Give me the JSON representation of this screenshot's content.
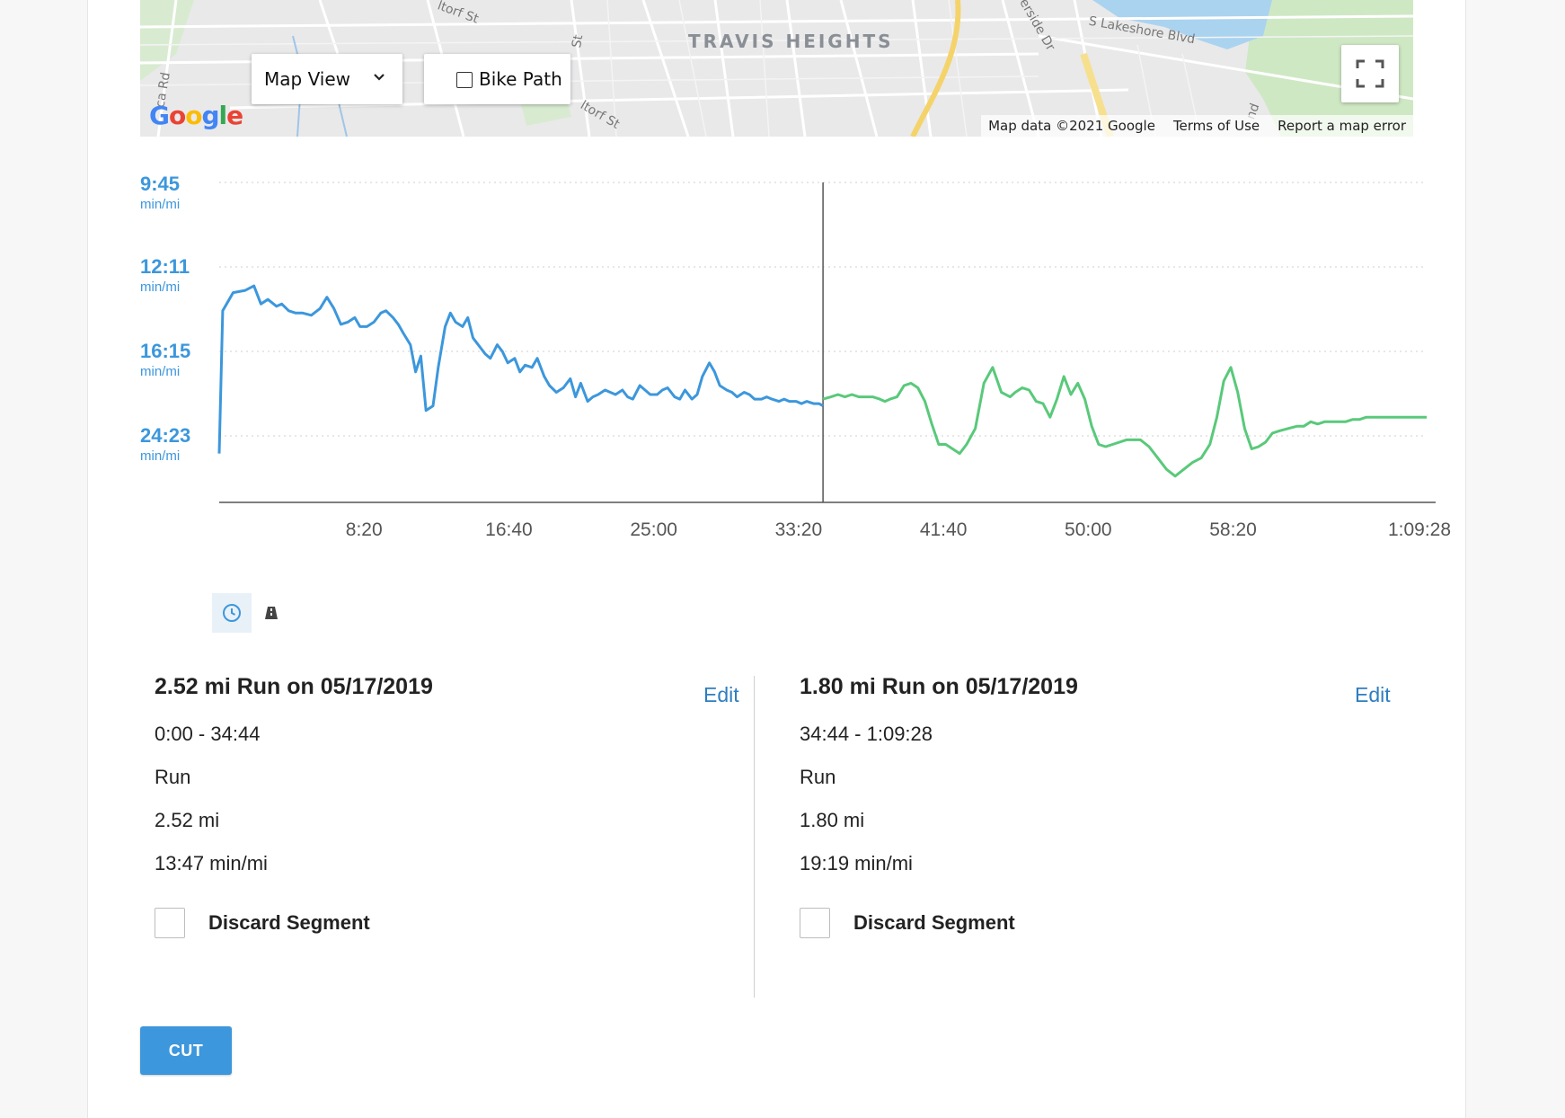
{
  "map": {
    "neighborhood_label": "TRAVIS HEIGHTS",
    "street_labels": [
      "Lakeshore Blvd",
      "Riverside Dr",
      "Altorf St",
      "St",
      "Ca Rd",
      "Altorf St",
      "nd"
    ],
    "street_labels_full": [
      "S Lakeshore Blvd",
      "verside Dr",
      "ltorf St",
      "St",
      "ca Rd",
      "ltorf St",
      "nd"
    ],
    "map_type_selected": "Map View",
    "bike_path_label": "Bike Path",
    "logo_text": "Google",
    "footer": {
      "data": "Map data ©2021 Google",
      "terms": "Terms of Use",
      "report": "Report a map error"
    },
    "icons": {
      "fullscreen": "fullscreen-icon",
      "dropdown": "chevron-down-icon"
    }
  },
  "chart_data": {
    "type": "line",
    "y_ticks": [
      {
        "label": "9:45",
        "unit": "min/mi"
      },
      {
        "label": "12:11",
        "unit": "min/mi"
      },
      {
        "label": "16:15",
        "unit": "min/mi"
      },
      {
        "label": "24:23",
        "unit": "min/mi"
      }
    ],
    "x_ticks": [
      "8:20",
      "16:40",
      "25:00",
      "33:20",
      "41:40",
      "50:00",
      "58:20",
      "1:09:28"
    ],
    "split_time": "34:44",
    "series": [
      {
        "color": "#3c97dc",
        "x": [
          0,
          0.2,
          0.8,
          1.5,
          2.0,
          2.4,
          2.8,
          3.3,
          3.6,
          4.0,
          4.4,
          4.8,
          5.3,
          5.8,
          6.2,
          6.6,
          7.0,
          7.4,
          7.8,
          8.1,
          8.5,
          8.9,
          9.3,
          9.6,
          10.0,
          10.3,
          10.6,
          11.0,
          11.3,
          11.6,
          11.9,
          12.3,
          12.6,
          13.0,
          13.3,
          13.6,
          14.0,
          14.3,
          14.6,
          15.0,
          15.3,
          15.6,
          16.0,
          16.3,
          16.6,
          17.0,
          17.3,
          17.6,
          18.0,
          18.3,
          18.7,
          19.0,
          19.4,
          19.8,
          20.2,
          20.5,
          20.8,
          21.2,
          21.5,
          21.8,
          22.2,
          22.5,
          22.8,
          23.2,
          23.5,
          23.8,
          24.2,
          24.5,
          24.8,
          25.2,
          25.5,
          25.8,
          26.2,
          26.5,
          26.8,
          27.2,
          27.5,
          27.8,
          28.2,
          28.5,
          28.8,
          29.2,
          29.5,
          29.8,
          30.2,
          30.5,
          30.8,
          31.2,
          31.5,
          31.8,
          32.2,
          32.5,
          32.8,
          33.2,
          33.5,
          33.8,
          34.2,
          34.5,
          34.74
        ],
        "y": [
          0.22,
          0.85,
          0.93,
          0.94,
          0.96,
          0.88,
          0.9,
          0.87,
          0.88,
          0.85,
          0.84,
          0.84,
          0.83,
          0.86,
          0.91,
          0.86,
          0.79,
          0.8,
          0.82,
          0.78,
          0.78,
          0.8,
          0.84,
          0.85,
          0.82,
          0.79,
          0.75,
          0.7,
          0.58,
          0.65,
          0.41,
          0.43,
          0.6,
          0.78,
          0.84,
          0.8,
          0.78,
          0.82,
          0.73,
          0.69,
          0.66,
          0.64,
          0.7,
          0.67,
          0.62,
          0.64,
          0.58,
          0.61,
          0.6,
          0.64,
          0.56,
          0.52,
          0.49,
          0.51,
          0.55,
          0.47,
          0.53,
          0.45,
          0.47,
          0.48,
          0.5,
          0.49,
          0.48,
          0.5,
          0.47,
          0.46,
          0.52,
          0.5,
          0.48,
          0.48,
          0.5,
          0.51,
          0.47,
          0.46,
          0.5,
          0.46,
          0.48,
          0.56,
          0.62,
          0.58,
          0.52,
          0.5,
          0.49,
          0.47,
          0.49,
          0.48,
          0.46,
          0.46,
          0.47,
          0.46,
          0.45,
          0.46,
          0.45,
          0.45,
          0.44,
          0.45,
          0.44,
          0.44,
          0.43
        ]
      },
      {
        "color": "#59c97a",
        "x": [
          34.74,
          35.2,
          35.6,
          36.0,
          36.4,
          36.8,
          37.2,
          37.6,
          38.0,
          38.3,
          38.6,
          39.0,
          39.4,
          39.8,
          40.2,
          40.6,
          41.0,
          41.4,
          41.8,
          42.2,
          42.6,
          43.0,
          43.5,
          44.0,
          44.5,
          45.0,
          45.5,
          45.8,
          46.2,
          46.6,
          47.0,
          47.4,
          47.8,
          48.2,
          48.6,
          49.0,
          49.4,
          49.8,
          50.2,
          50.6,
          51.0,
          51.4,
          51.8,
          52.2,
          52.6,
          53.0,
          53.5,
          54.0,
          54.5,
          55.0,
          55.5,
          56.0,
          56.5,
          57.0,
          57.4,
          57.8,
          58.2,
          58.6,
          59.0,
          59.4,
          59.8,
          60.2,
          60.6,
          61.0,
          61.5,
          62.0,
          62.4,
          62.8,
          63.2,
          63.6,
          64.0,
          64.4,
          64.8,
          65.2,
          65.6,
          66.0,
          66.4,
          66.8,
          67.2,
          67.6,
          68.0,
          68.4,
          68.8,
          69.2,
          69.47
        ],
        "y": [
          0.46,
          0.47,
          0.48,
          0.47,
          0.48,
          0.47,
          0.47,
          0.47,
          0.46,
          0.45,
          0.46,
          0.47,
          0.52,
          0.53,
          0.51,
          0.45,
          0.35,
          0.26,
          0.26,
          0.24,
          0.22,
          0.26,
          0.33,
          0.53,
          0.6,
          0.49,
          0.47,
          0.49,
          0.51,
          0.5,
          0.45,
          0.44,
          0.38,
          0.46,
          0.56,
          0.48,
          0.53,
          0.46,
          0.34,
          0.26,
          0.25,
          0.26,
          0.27,
          0.28,
          0.28,
          0.28,
          0.25,
          0.2,
          0.15,
          0.12,
          0.15,
          0.18,
          0.2,
          0.26,
          0.38,
          0.54,
          0.6,
          0.49,
          0.33,
          0.24,
          0.25,
          0.27,
          0.31,
          0.32,
          0.33,
          0.34,
          0.34,
          0.36,
          0.35,
          0.36,
          0.36,
          0.36,
          0.36,
          0.37,
          0.37,
          0.38,
          0.38,
          0.38,
          0.38,
          0.38,
          0.38,
          0.38,
          0.38,
          0.38,
          0.38
        ]
      }
    ]
  },
  "toggles": {
    "time_icon": "clock-icon",
    "distance_icon": "road-icon"
  },
  "segments": [
    {
      "title": "2.52 mi Run on 05/17/2019",
      "edit_label": "Edit",
      "range": "0:00 - 34:44",
      "activity": "Run",
      "distance": "2.52 mi",
      "pace": "13:47 min/mi",
      "discard_label": "Discard Segment"
    },
    {
      "title": "1.80 mi Run on 05/17/2019",
      "edit_label": "Edit",
      "range": "34:44 - 1:09:28",
      "activity": "Run",
      "distance": "1.80 mi",
      "pace": "19:19 min/mi",
      "discard_label": "Discard Segment"
    }
  ],
  "actions": {
    "cut_label": "CUT"
  }
}
